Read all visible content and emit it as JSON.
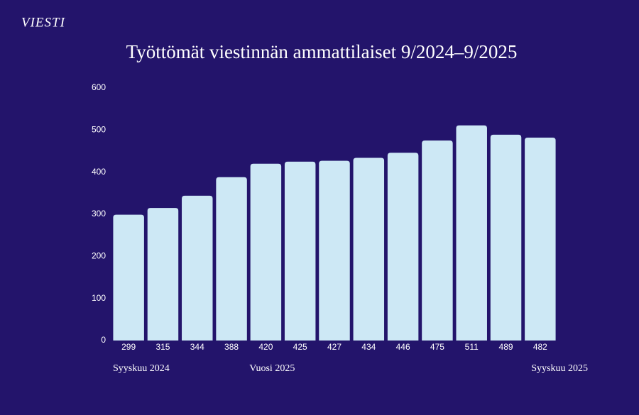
{
  "logo": "VIESTI",
  "chart_data": {
    "type": "bar",
    "title": "Työttömät viestinnän ammattilaiset 9/2024–9/2025",
    "categories": [
      null,
      null,
      null,
      null,
      null,
      null,
      null,
      null,
      null,
      null,
      null,
      null,
      null
    ],
    "values": [
      299,
      315,
      344,
      388,
      420,
      425,
      427,
      434,
      446,
      475,
      511,
      489,
      482
    ],
    "color": "#cde8f5",
    "ylim": [
      0,
      600
    ],
    "yticks": [
      0,
      100,
      200,
      300,
      400,
      500,
      600
    ],
    "grid": false,
    "annotations": [
      "Syyskuu 2024",
      "Vuosi 2025",
      "Syyskuu 2025"
    ]
  }
}
